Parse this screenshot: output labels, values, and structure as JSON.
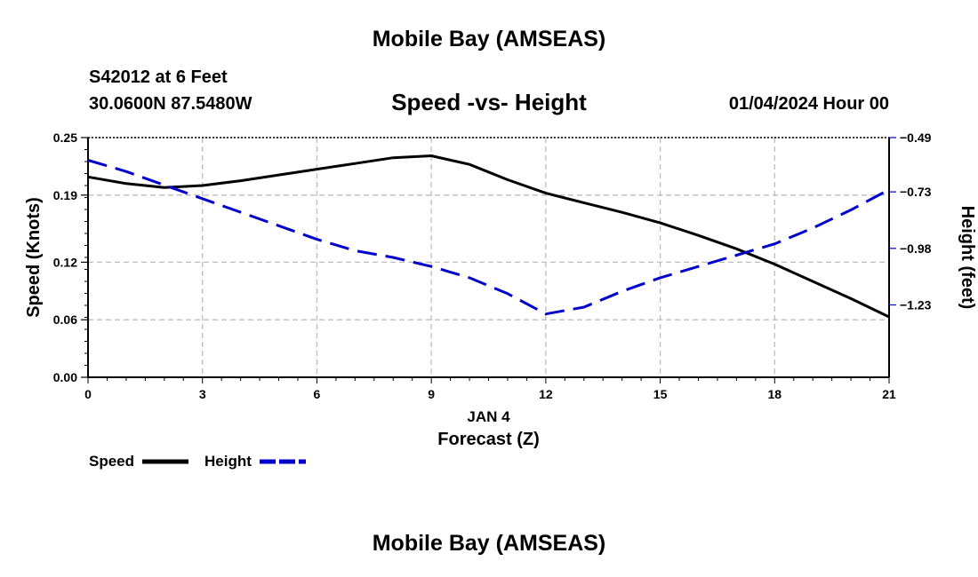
{
  "header": {
    "top_title": "Mobile Bay (AMSEAS)",
    "station": "S42012 at 6 Feet",
    "latlon": "30.0600N  87.5480W",
    "chart_title": "Speed -vs- Height",
    "date": "01/04/2024 Hour 00",
    "bottom_title": "Mobile Bay (AMSEAS)"
  },
  "chart_data": {
    "type": "line",
    "title": "Speed -vs- Height",
    "xlabel": "Forecast (Z)",
    "xlabel_day": "JAN 4",
    "ylabel": "Speed (Knots)",
    "y2label": "Height (feet)",
    "xlim": [
      0,
      21
    ],
    "ylim": [
      0.0,
      0.25
    ],
    "y2lim": [
      -1.55,
      -0.49
    ],
    "x_ticks": [
      0,
      3,
      6,
      9,
      12,
      15,
      18,
      21
    ],
    "y_ticks": [
      "0.00",
      "0.06",
      "0.12",
      "0.19",
      "0.25"
    ],
    "y2_ticks": [
      "-0.49",
      "-0.73",
      "-0.98",
      "-1.23"
    ],
    "grid": true,
    "legend_position": "bottom-left",
    "series": [
      {
        "name": "Speed",
        "axis": "left",
        "color": "#000000",
        "style": "solid",
        "x": [
          0,
          1,
          2,
          3,
          4,
          5,
          6,
          7,
          8,
          9,
          10,
          11,
          12,
          13,
          14,
          15,
          16,
          17,
          18,
          19,
          20,
          21
        ],
        "values": [
          0.209,
          0.202,
          0.198,
          0.2,
          0.205,
          0.211,
          0.217,
          0.223,
          0.229,
          0.231,
          0.222,
          0.206,
          0.192,
          0.182,
          0.172,
          0.161,
          0.148,
          0.134,
          0.118,
          0.1,
          0.082,
          0.063
        ]
      },
      {
        "name": "Height",
        "axis": "right",
        "color": "#0000cc",
        "style": "dashed",
        "x": [
          0,
          1,
          2,
          3,
          4,
          5,
          6,
          7,
          8,
          9,
          10,
          11,
          12,
          13,
          14,
          15,
          16,
          17,
          18,
          19,
          20,
          21
        ],
        "values": [
          -0.59,
          -0.64,
          -0.7,
          -0.76,
          -0.82,
          -0.88,
          -0.94,
          -0.99,
          -1.02,
          -1.06,
          -1.11,
          -1.18,
          -1.27,
          -1.24,
          -1.17,
          -1.11,
          -1.06,
          -1.01,
          -0.96,
          -0.89,
          -0.81,
          -0.72
        ]
      }
    ]
  }
}
